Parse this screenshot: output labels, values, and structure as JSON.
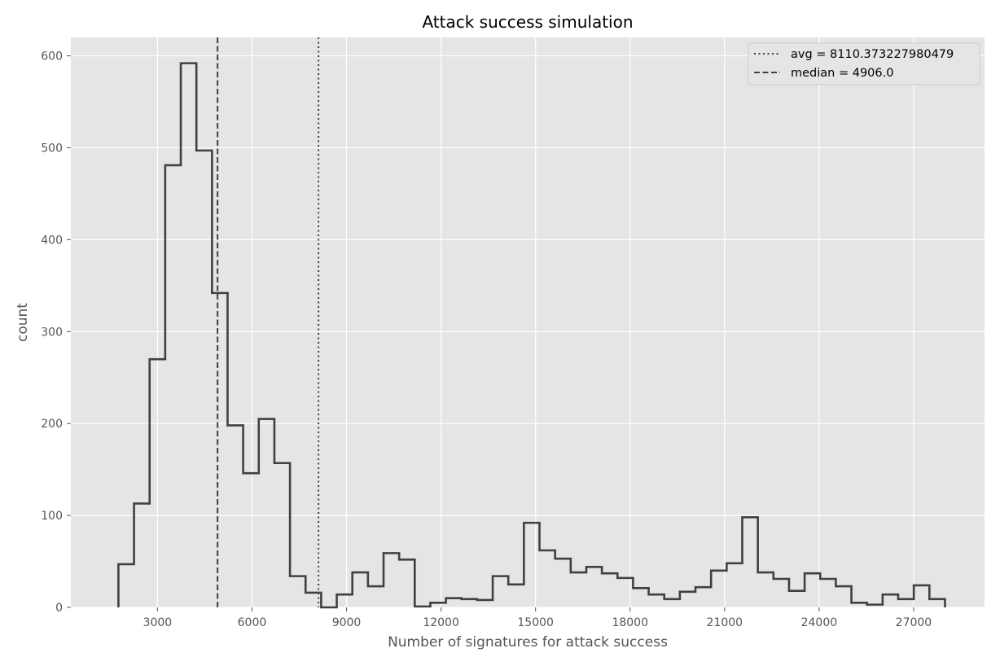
{
  "chart_data": {
    "type": "histogram",
    "title": "Attack success simulation",
    "xlabel": "Number of signatures for attack success",
    "ylabel": "count",
    "xlim": [
      250,
      29250
    ],
    "ylim": [
      0,
      620
    ],
    "xticks": [
      3000,
      6000,
      9000,
      12000,
      15000,
      18000,
      21000,
      24000,
      27000
    ],
    "yticks": [
      0,
      100,
      200,
      300,
      400,
      500,
      600
    ],
    "grid": true,
    "bins": {
      "start": 1760,
      "width": 495,
      "counts": [
        47,
        113,
        270,
        481,
        592,
        497,
        342,
        198,
        146,
        205,
        157,
        34,
        16,
        0,
        14,
        38,
        23,
        59,
        52,
        1,
        5,
        10,
        9,
        8,
        34,
        25,
        92,
        62,
        53,
        38,
        44,
        37,
        32,
        21,
        14,
        9,
        17,
        22,
        40,
        48,
        98,
        38,
        31,
        18,
        37,
        31,
        23,
        5,
        3,
        14,
        9,
        24,
        9
      ]
    },
    "reference_lines": [
      {
        "name": "avg = 8110.373227980479",
        "x": 8110.373227980479,
        "style": "dotted"
      },
      {
        "name": "median = 4906.0",
        "x": 4906.0,
        "style": "dashed"
      }
    ],
    "legend_position": "top-right",
    "colors": {
      "background": "#e5e5e5",
      "grid": "#ffffff",
      "line": "#404040"
    }
  }
}
